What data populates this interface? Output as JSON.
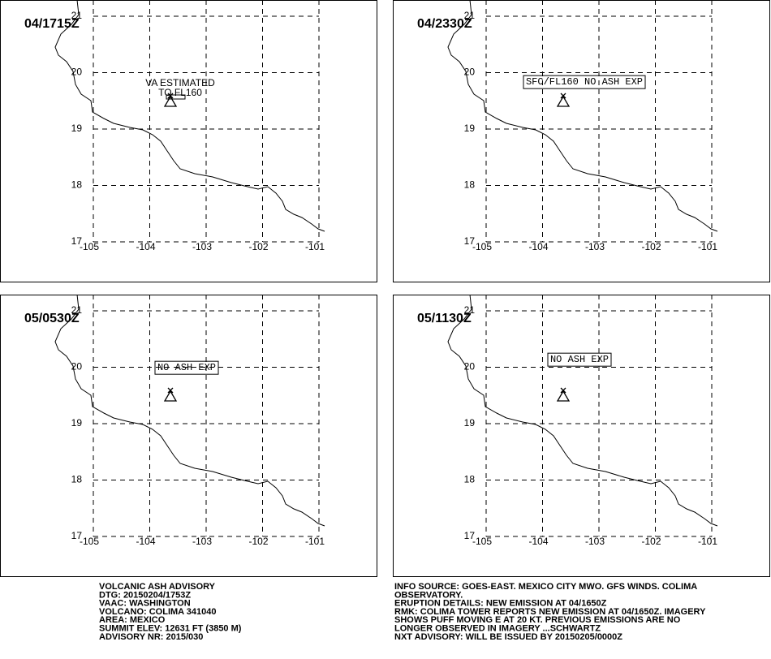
{
  "map": {
    "xlim": [
      -105,
      -101
    ],
    "ylim": [
      17,
      21
    ],
    "xticks": [
      -105,
      -104,
      -103,
      -102,
      -101
    ],
    "yticks": [
      17,
      18,
      19,
      20,
      21
    ]
  },
  "panels": [
    {
      "time": "04/1715Z",
      "annotation": [
        "VA ESTIMATED",
        "TO FL160"
      ]
    },
    {
      "time": "04/2330Z",
      "annotation": [
        "SFC/FL160 NO ASH EXP"
      ]
    },
    {
      "time": "05/0530Z",
      "annotation": [
        "NO ASH EXP"
      ]
    },
    {
      "time": "05/1130Z",
      "annotation": [
        "NO ASH EXP"
      ]
    }
  ],
  "footer": {
    "left": [
      "VOLCANIC ASH ADVISORY",
      "DTG: 20150204/1753Z",
      "VAAC: WASHINGTON",
      "VOLCANO: COLIMA 341040",
      "AREA: MEXICO",
      "SUMMIT ELEV: 12631 FT (3850 M)",
      "ADVISORY NR: 2015/030"
    ],
    "right": [
      "INFO SOURCE: GOES-EAST. MEXICO CITY MWO. GFS WINDS. COLIMA",
      "OBSERVATORY.",
      "ERUPTION DETAILS: NEW EMISSION AT 04/1650Z",
      "RMK: COLIMA TOWER REPORTS NEW EMISSION AT 04/1650Z. IMAGERY",
      "SHOWS PUFF MOVING E AT 20 KT. PREVIOUS EMISSIONS ARE NO",
      "LONGER OBSERVED IN IMAGERY ...SCHWARTZ",
      "NXT ADVISORY: WILL BE ISSUED BY 20150205/0000Z"
    ]
  }
}
